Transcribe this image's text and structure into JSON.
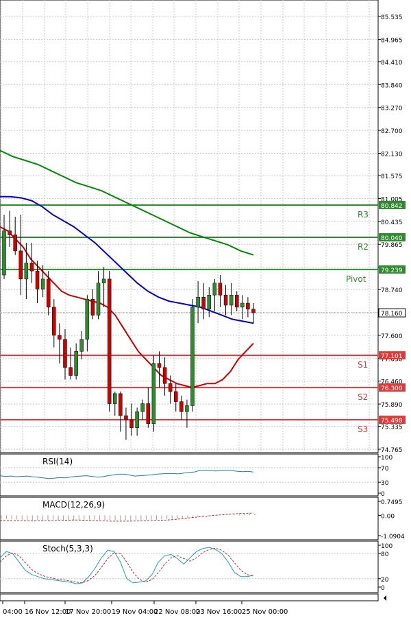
{
  "chart_data": [
    {
      "type": "candlestick",
      "price_axis": {
        "range": [
          74.765,
          85.535
        ],
        "ticks": [
          "85.535",
          "84.965",
          "84.410",
          "83.840",
          "83.270",
          "82.700",
          "82.130",
          "81.575",
          "81.005",
          "80.435",
          "79.865",
          "79.295",
          "78.740",
          "78.170",
          "77.600",
          "77.030",
          "76.460",
          "75.890",
          "75.335",
          "74.765"
        ]
      },
      "candles": [
        {
          "o": 79.1,
          "h": 80.6,
          "l": 79.0,
          "c": 80.2
        },
        {
          "o": 80.2,
          "h": 80.7,
          "l": 79.8,
          "c": 80.1
        },
        {
          "o": 80.1,
          "h": 80.55,
          "l": 79.6,
          "c": 79.7
        },
        {
          "o": 79.7,
          "h": 80.6,
          "l": 78.6,
          "c": 79.0
        },
        {
          "o": 79.0,
          "h": 79.9,
          "l": 78.5,
          "c": 79.4
        },
        {
          "o": 79.4,
          "h": 79.9,
          "l": 78.9,
          "c": 79.2
        },
        {
          "o": 79.2,
          "h": 79.45,
          "l": 78.4,
          "c": 78.75
        },
        {
          "o": 78.75,
          "h": 79.35,
          "l": 78.55,
          "c": 79.0
        },
        {
          "o": 79.0,
          "h": 79.2,
          "l": 78.1,
          "c": 78.3
        },
        {
          "o": 78.3,
          "h": 78.5,
          "l": 77.3,
          "c": 77.6
        },
        {
          "o": 77.6,
          "h": 77.9,
          "l": 76.9,
          "c": 77.5
        },
        {
          "o": 77.5,
          "h": 77.75,
          "l": 76.5,
          "c": 76.8
        },
        {
          "o": 76.8,
          "h": 77.3,
          "l": 76.5,
          "c": 76.6
        },
        {
          "o": 76.6,
          "h": 77.4,
          "l": 76.5,
          "c": 77.2
        },
        {
          "o": 77.2,
          "h": 77.7,
          "l": 77.0,
          "c": 77.5
        },
        {
          "o": 77.5,
          "h": 78.6,
          "l": 77.2,
          "c": 78.5
        },
        {
          "o": 78.5,
          "h": 78.75,
          "l": 78.0,
          "c": 78.1
        },
        {
          "o": 78.1,
          "h": 79.2,
          "l": 78.0,
          "c": 78.9
        },
        {
          "o": 78.9,
          "h": 79.3,
          "l": 78.3,
          "c": 79.0
        },
        {
          "o": 79.0,
          "h": 79.2,
          "l": 75.7,
          "c": 75.9
        },
        {
          "o": 75.9,
          "h": 76.2,
          "l": 75.6,
          "c": 76.15
        },
        {
          "o": 76.15,
          "h": 76.2,
          "l": 75.2,
          "c": 75.6
        },
        {
          "o": 75.6,
          "h": 75.8,
          "l": 75.0,
          "c": 75.5
        },
        {
          "o": 75.5,
          "h": 75.9,
          "l": 75.1,
          "c": 75.3
        },
        {
          "o": 75.3,
          "h": 75.8,
          "l": 75.1,
          "c": 75.7
        },
        {
          "o": 75.7,
          "h": 76.0,
          "l": 75.5,
          "c": 75.9
        },
        {
          "o": 75.9,
          "h": 76.3,
          "l": 75.3,
          "c": 75.4
        },
        {
          "o": 75.4,
          "h": 77.1,
          "l": 75.2,
          "c": 76.9
        },
        {
          "o": 76.9,
          "h": 77.2,
          "l": 76.3,
          "c": 76.8
        },
        {
          "o": 76.8,
          "h": 77.05,
          "l": 76.1,
          "c": 76.4
        },
        {
          "o": 76.4,
          "h": 76.6,
          "l": 75.9,
          "c": 76.2
        },
        {
          "o": 76.2,
          "h": 76.4,
          "l": 75.7,
          "c": 75.95
        },
        {
          "o": 75.95,
          "h": 76.1,
          "l": 75.5,
          "c": 75.7
        },
        {
          "o": 75.7,
          "h": 76.0,
          "l": 75.3,
          "c": 75.85
        },
        {
          "o": 75.85,
          "h": 78.5,
          "l": 75.7,
          "c": 78.3
        },
        {
          "o": 78.3,
          "h": 78.95,
          "l": 77.9,
          "c": 78.55
        },
        {
          "o": 78.55,
          "h": 78.9,
          "l": 78.0,
          "c": 78.25
        },
        {
          "o": 78.25,
          "h": 78.8,
          "l": 78.05,
          "c": 78.6
        },
        {
          "o": 78.6,
          "h": 79.0,
          "l": 78.2,
          "c": 78.9
        },
        {
          "o": 78.9,
          "h": 79.1,
          "l": 78.3,
          "c": 78.6
        },
        {
          "o": 78.6,
          "h": 78.85,
          "l": 78.1,
          "c": 78.35
        },
        {
          "o": 78.35,
          "h": 78.9,
          "l": 78.1,
          "c": 78.6
        },
        {
          "o": 78.6,
          "h": 78.7,
          "l": 78.2,
          "c": 78.3
        },
        {
          "o": 78.3,
          "h": 78.6,
          "l": 78.0,
          "c": 78.4
        },
        {
          "o": 78.4,
          "h": 78.55,
          "l": 78.05,
          "c": 78.25
        },
        {
          "o": 78.25,
          "h": 78.4,
          "l": 77.9,
          "c": 78.16
        }
      ],
      "moving_averages": [
        {
          "color": "#cc0000",
          "values": [
            80.3,
            80.2,
            80.0,
            79.8,
            79.5,
            79.3,
            79.1,
            78.9,
            78.7,
            78.6,
            78.55,
            78.5,
            78.45,
            78.4,
            78.3,
            78.1,
            77.8,
            77.5,
            77.2,
            77.0,
            76.8,
            76.6,
            76.5,
            76.4,
            76.35,
            76.3,
            76.35,
            76.4,
            76.4,
            76.5,
            76.7,
            77.0,
            77.2,
            77.4
          ]
        },
        {
          "color": "#0000cc",
          "values": [
            81.05,
            81.05,
            81.02,
            80.95,
            80.8,
            80.6,
            80.45,
            80.3,
            80.1,
            79.9,
            79.65,
            79.4,
            79.15,
            78.9,
            78.7,
            78.55,
            78.45,
            78.4,
            78.35,
            78.3,
            78.2,
            78.1,
            78.0,
            77.95,
            77.9
          ]
        },
        {
          "color": "#008800",
          "values": [
            82.2,
            82.05,
            81.95,
            81.85,
            81.7,
            81.55,
            81.4,
            81.3,
            81.2,
            81.05,
            80.9,
            80.75,
            80.6,
            80.45,
            80.3,
            80.15,
            80.05,
            79.95,
            79.85,
            79.7,
            79.6
          ]
        }
      ],
      "levels": [
        {
          "label": "R3",
          "value": 80.842,
          "value_text": "80.842",
          "color": "#2e8b2e"
        },
        {
          "label": "R2",
          "value": 80.04,
          "value_text": "80.040",
          "color": "#2e8b2e"
        },
        {
          "label": "Pivot",
          "value": 79.239,
          "value_text": "79.239",
          "color": "#2e8b2e"
        },
        {
          "label": "S1",
          "value": 77.101,
          "value_text": "77.101",
          "color": "#e03a3a"
        },
        {
          "label": "S2",
          "value": 76.3,
          "value_text": "76.300",
          "color": "#e03a3a"
        },
        {
          "label": "S3",
          "value": 75.498,
          "value_text": "75.498",
          "color": "#e03a3a"
        }
      ],
      "current_price": {
        "value": 78.16,
        "text": "78.160"
      }
    },
    {
      "type": "line",
      "title": "RSI(14)",
      "ticks": [
        "100",
        "70",
        "30",
        "0"
      ],
      "range": [
        0,
        100
      ],
      "values": [
        48,
        46,
        47,
        45,
        46,
        47,
        45,
        44,
        42,
        40,
        41,
        43,
        42,
        44,
        46,
        47,
        48,
        46,
        44,
        45,
        48,
        50,
        52,
        52,
        50,
        47,
        48,
        49,
        50,
        52,
        53,
        54,
        54,
        53,
        55,
        57,
        58,
        62,
        63,
        62,
        61,
        62,
        63,
        62,
        60,
        59,
        60,
        58
      ]
    },
    {
      "type": "bar",
      "title": "MACD(12,26,9)",
      "ticks": [
        "0.7495",
        "0.00",
        "-1.0904"
      ],
      "range": [
        -1.0904,
        0.7495
      ],
      "histogram": [
        -0.7,
        -0.8,
        -0.85,
        -0.9,
        -0.95,
        -0.95,
        -1.0,
        -1.0,
        -1.05,
        -1.05,
        -1.0,
        -1.0,
        -1.0,
        -1.0,
        -1.0,
        -0.95,
        -0.95,
        -0.9,
        -0.9,
        -0.95,
        -1.0,
        -1.05,
        -1.05,
        -1.05,
        -1.05,
        -1.05,
        -1.0,
        -1.0,
        -0.95,
        -0.95,
        -0.95,
        -0.9,
        -0.85,
        -0.8,
        -0.7,
        -0.6,
        -0.5,
        -0.4,
        -0.3,
        -0.2,
        -0.1,
        0.0,
        0.08,
        0.15,
        0.2,
        0.25,
        0.28,
        0.3,
        0.32,
        0.35
      ],
      "signal": [
        -0.9,
        -0.95,
        -0.95,
        -0.98,
        -1.0,
        -1.0,
        -0.98,
        -0.95,
        -0.9,
        -0.85,
        -0.85,
        -0.9,
        -0.95,
        -1.0,
        -1.05,
        -1.05,
        -1.05,
        -1.02,
        -1.0,
        -0.95,
        -0.9,
        -0.85,
        -0.75,
        -0.6,
        -0.45,
        -0.3,
        -0.15,
        0.0,
        0.1,
        0.2,
        0.3,
        0.35,
        0.4
      ]
    },
    {
      "type": "line",
      "title": "Stoch(5,3,3)",
      "ticks": [
        "100",
        "80",
        "20",
        "0"
      ],
      "range": [
        0,
        100
      ],
      "series": [
        {
          "color": "#20a0b0",
          "values": [
            70,
            85,
            80,
            60,
            40,
            30,
            25,
            20,
            18,
            16,
            14,
            12,
            8,
            10,
            25,
            45,
            70,
            88,
            85,
            60,
            20,
            10,
            12,
            15,
            30,
            60,
            75,
            78,
            68,
            55,
            70,
            85,
            92,
            95,
            90,
            80,
            60,
            35,
            25,
            25,
            28
          ]
        },
        {
          "color": "#cc2222",
          "values": [
            60,
            75,
            82,
            75,
            58,
            42,
            32,
            26,
            22,
            19,
            17,
            15,
            12,
            10,
            16,
            28,
            47,
            68,
            82,
            80,
            60,
            35,
            18,
            12,
            18,
            35,
            55,
            70,
            75,
            68,
            62,
            70,
            82,
            90,
            93,
            88,
            76,
            58,
            40,
            30,
            26
          ]
        }
      ]
    }
  ],
  "x_axis": {
    "labels": [
      "04:00",
      "16 Nov 12:00",
      "17 Nov 20:00",
      "19 Nov 04:00",
      "22 Nov 08:00",
      "23 Nov 16:00",
      "25 Nov 00:00"
    ]
  }
}
